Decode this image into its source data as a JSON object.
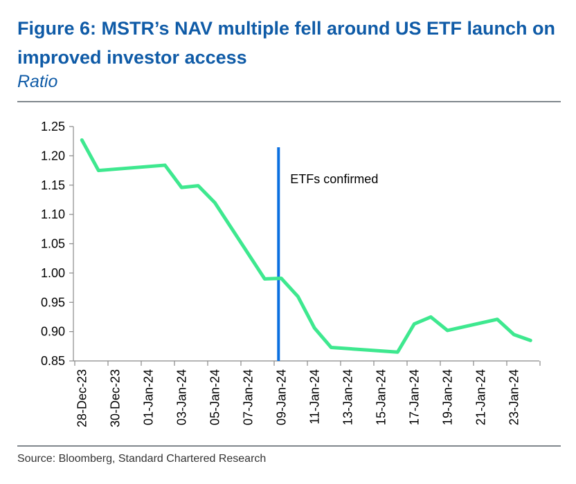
{
  "title": "Figure 6: MSTR’s NAV multiple fell around US ETF launch on improved investor access",
  "subtitle": "Ratio",
  "source": "Source: Bloomberg, Standard Chartered Research",
  "chart_data": {
    "type": "line",
    "title": "Figure 6: MSTR’s NAV multiple fell around US ETF launch on improved investor access",
    "ylabel": "Ratio",
    "xlabel": "",
    "ylim": [
      0.85,
      1.25
    ],
    "yticks": [
      "0.85",
      "0.90",
      "0.95",
      "1.00",
      "1.05",
      "1.10",
      "1.15",
      "1.20",
      "1.25"
    ],
    "xtick_labels": [
      "28-Dec-23",
      "30-Dec-23",
      "01-Jan-24",
      "03-Jan-24",
      "05-Jan-24",
      "07-Jan-24",
      "09-Jan-24",
      "11-Jan-24",
      "13-Jan-24",
      "15-Jan-24",
      "17-Jan-24",
      "19-Jan-24",
      "21-Jan-24",
      "23-Jan-24"
    ],
    "grid": false,
    "line_color": "#3ee88f",
    "marker_color": "#0a6fe0",
    "x": [
      "2023-12-28",
      "2023-12-29",
      "2024-01-02",
      "2024-01-03",
      "2024-01-04",
      "2024-01-05",
      "2024-01-08",
      "2024-01-09",
      "2024-01-10",
      "2024-01-11",
      "2024-01-12",
      "2024-01-16",
      "2024-01-17",
      "2024-01-18",
      "2024-01-19",
      "2024-01-22",
      "2024-01-23",
      "2024-01-24"
    ],
    "values": [
      1.227,
      1.175,
      1.184,
      1.146,
      1.149,
      1.12,
      0.99,
      0.991,
      0.96,
      0.906,
      0.873,
      0.865,
      0.913,
      0.925,
      0.902,
      0.921,
      0.895,
      0.885
    ],
    "annotation": {
      "date": "2024-01-09",
      "label": "ETFs confirmed"
    }
  }
}
